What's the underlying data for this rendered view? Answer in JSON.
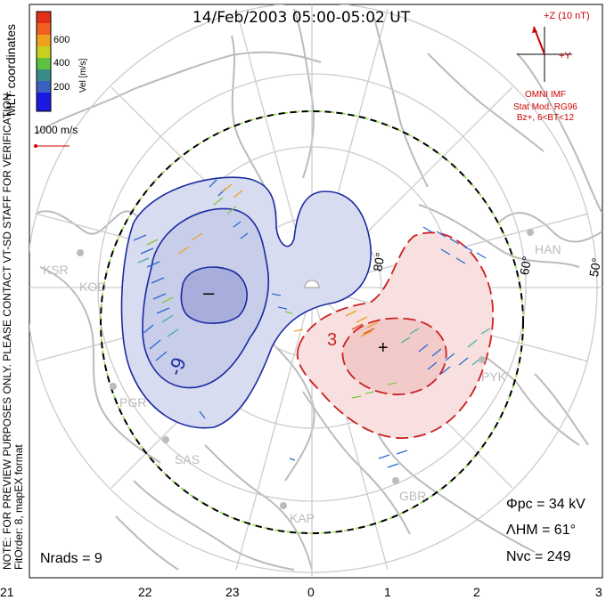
{
  "title": "14/Feb/2003 05:00-05:02 UT",
  "colorbar": {
    "ticks": [
      "600",
      "400",
      "200"
    ],
    "label": "Vel [m/s]",
    "colors": [
      "#e0301a",
      "#f06020",
      "#f0a020",
      "#c8d020",
      "#60c040",
      "#3a8a8a",
      "#3a60c0",
      "#1a1ae0"
    ]
  },
  "coords": "MLT coordinates",
  "vector_scale": "1000 m/s",
  "note": "NOTE: FOR PREVIEW PURPOSES ONLY. PLEASE CONTACT VT-SD STAFF FOR VERIFICATION.",
  "fitorder": "FitOrder: 8, mapEX format",
  "imf": {
    "z_label": "+Z (10 nT)",
    "y_label": "+Y",
    "source": "OMNI IMF",
    "stat_mod": "Stat Mod: RG96",
    "stat_cond": "Bz+, 6<BT<12"
  },
  "latitudes": [
    "80°",
    "60°",
    "50°"
  ],
  "stations": [
    "KSR",
    "KOD",
    "PGR",
    "SAS",
    "KAP",
    "GBR",
    "PYK",
    "HAN"
  ],
  "contours": {
    "neg": "-9",
    "pos": "3"
  },
  "stats": {
    "phi_pc": "Φpc = 34 kV",
    "lambda_hm": "ΛHM = 61°",
    "n_vc": "Nvc = 249",
    "n_rads": "Nrads = 9"
  },
  "mlt_ticks": [
    "21",
    "22",
    "23",
    "0",
    "1",
    "2",
    "3"
  ]
}
